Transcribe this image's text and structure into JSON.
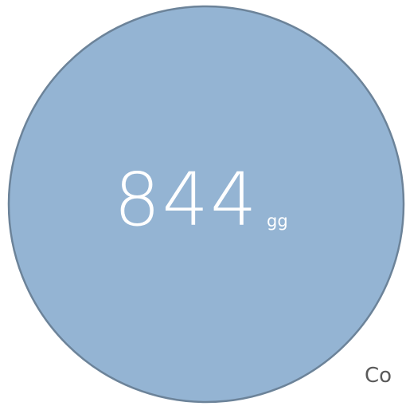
{
  "widget": {
    "value": "844",
    "unit": "gg",
    "caption": "Co"
  }
}
